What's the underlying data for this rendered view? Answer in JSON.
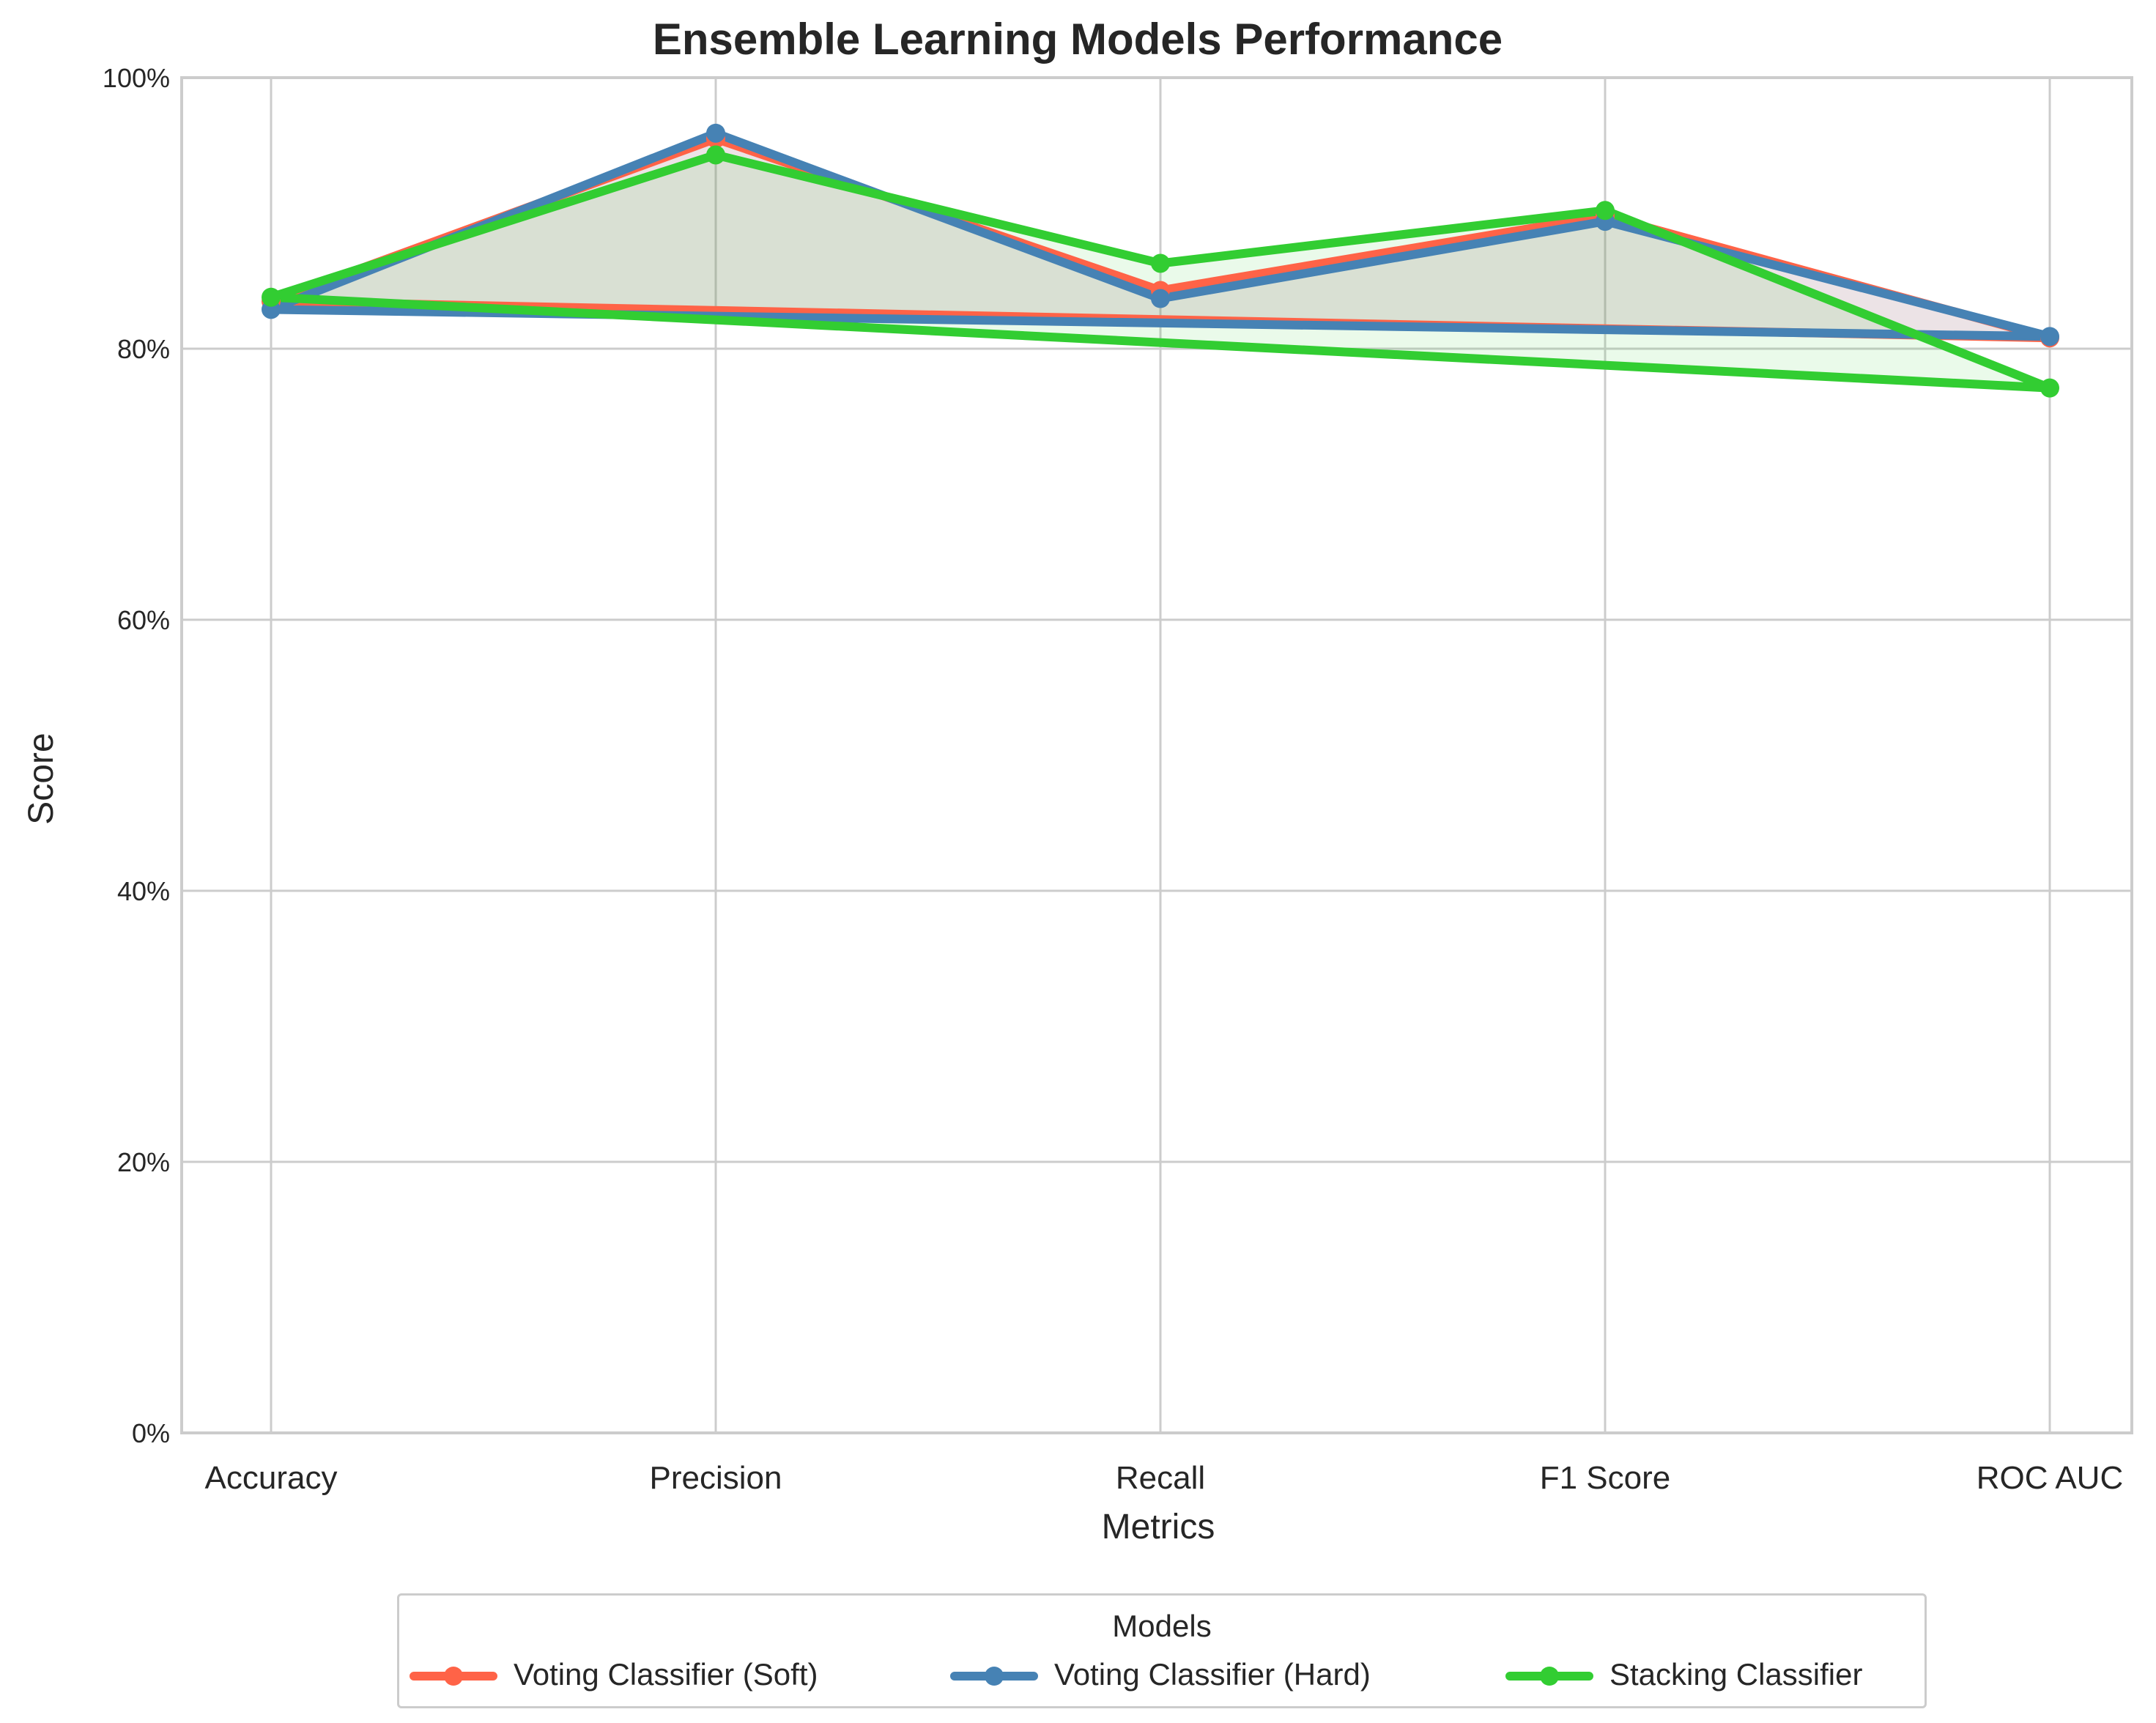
{
  "chart_data": {
    "type": "line",
    "title": "Ensemble Learning Models Performance",
    "xlabel": "Metrics",
    "ylabel": "Score",
    "categories": [
      "Accuracy",
      "Precision",
      "Recall",
      "F1 Score",
      "ROC AUC"
    ],
    "ylim": [
      0,
      1
    ],
    "yticks": [
      0,
      0.2,
      0.4,
      0.6,
      0.8,
      1.0
    ],
    "ytick_labels": [
      "0%",
      "20%",
      "40%",
      "60%",
      "80%",
      "100%"
    ],
    "grid": true,
    "closed_polygon_fill": true,
    "series": [
      {
        "name": "Voting Classifier (Soft)",
        "color": "#ff6347",
        "values": [
          0.835,
          0.955,
          0.843,
          0.898,
          0.808
        ]
      },
      {
        "name": "Voting Classifier (Hard)",
        "color": "#4682b4",
        "values": [
          0.829,
          0.959,
          0.837,
          0.894,
          0.809
        ]
      },
      {
        "name": "Stacking Classifier",
        "color": "#32cd32",
        "values": [
          0.838,
          0.943,
          0.863,
          0.902,
          0.771
        ]
      }
    ],
    "legend": {
      "title": "Models",
      "placement": "bottom-center"
    }
  }
}
